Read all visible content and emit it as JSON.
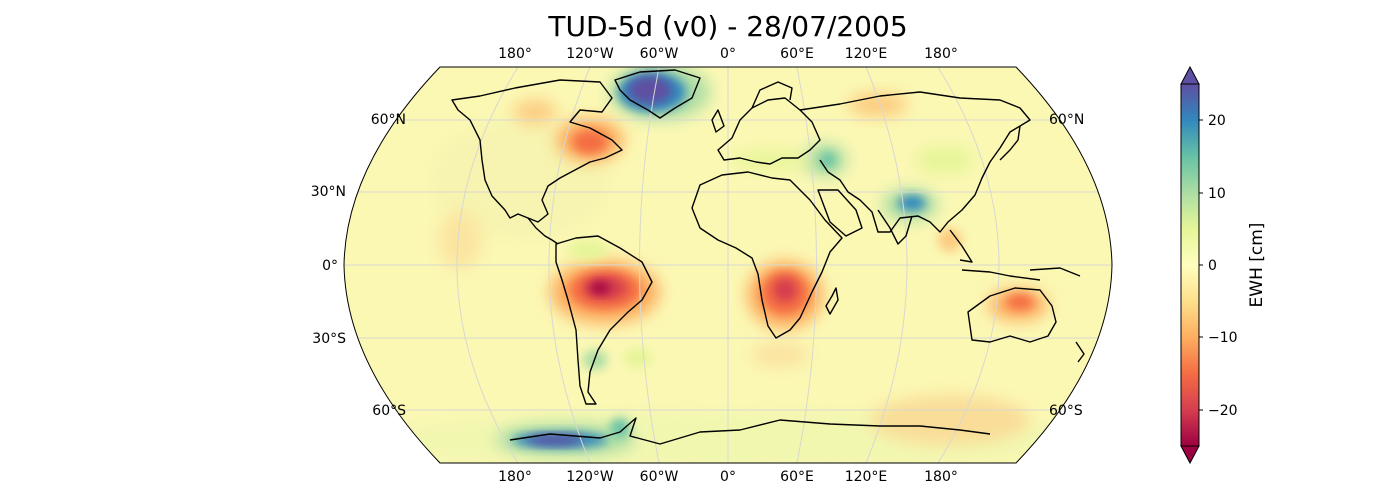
{
  "title": "TUD-5d (v0) - 28/07/2005",
  "map": {
    "projection": "Robinson",
    "lon_labels_top": [
      "180°",
      "120°W",
      "60°W",
      "0°",
      "60°E",
      "120°E",
      "180°"
    ],
    "lon_labels_bottom": [
      "180°",
      "120°W",
      "60°W",
      "0°",
      "60°E",
      "120°E",
      "180°"
    ],
    "lat_labels_left": [
      "60°N",
      "30°N",
      "0°",
      "30°S",
      "60°S"
    ],
    "lat_labels_right": [
      "60°N",
      "60°S"
    ],
    "gridlines": true
  },
  "colorbar": {
    "label": "EWH [cm]",
    "ticks": [
      "20",
      "10",
      "0",
      "−10",
      "−20"
    ],
    "range": [
      -25,
      25
    ],
    "extend": "both",
    "colormap": "Spectral",
    "colors": [
      "#9e0142",
      "#d53e4f",
      "#f46d43",
      "#fdae61",
      "#fee08b",
      "#ffffbf",
      "#e6f598",
      "#abdda4",
      "#66c2a5",
      "#3288bd",
      "#5e4fa2"
    ]
  },
  "anomalies": [
    {
      "region": "Greenland",
      "sign": "positive",
      "strength": "strong"
    },
    {
      "region": "Amazon basin",
      "sign": "negative",
      "strength": "strong"
    },
    {
      "region": "Southern Africa (Zambezi)",
      "sign": "negative",
      "strength": "strong"
    },
    {
      "region": "West Antarctica",
      "sign": "positive",
      "strength": "strong"
    },
    {
      "region": "Hudson Bay / Eastern Canada",
      "sign": "negative",
      "strength": "moderate"
    },
    {
      "region": "Ganges-Brahmaputra",
      "sign": "positive",
      "strength": "moderate"
    },
    {
      "region": "Northern Australia",
      "sign": "negative",
      "strength": "moderate"
    },
    {
      "region": "Siberia",
      "sign": "negative",
      "strength": "weak"
    },
    {
      "region": "Caspian Sea",
      "sign": "positive",
      "strength": "moderate"
    }
  ]
}
